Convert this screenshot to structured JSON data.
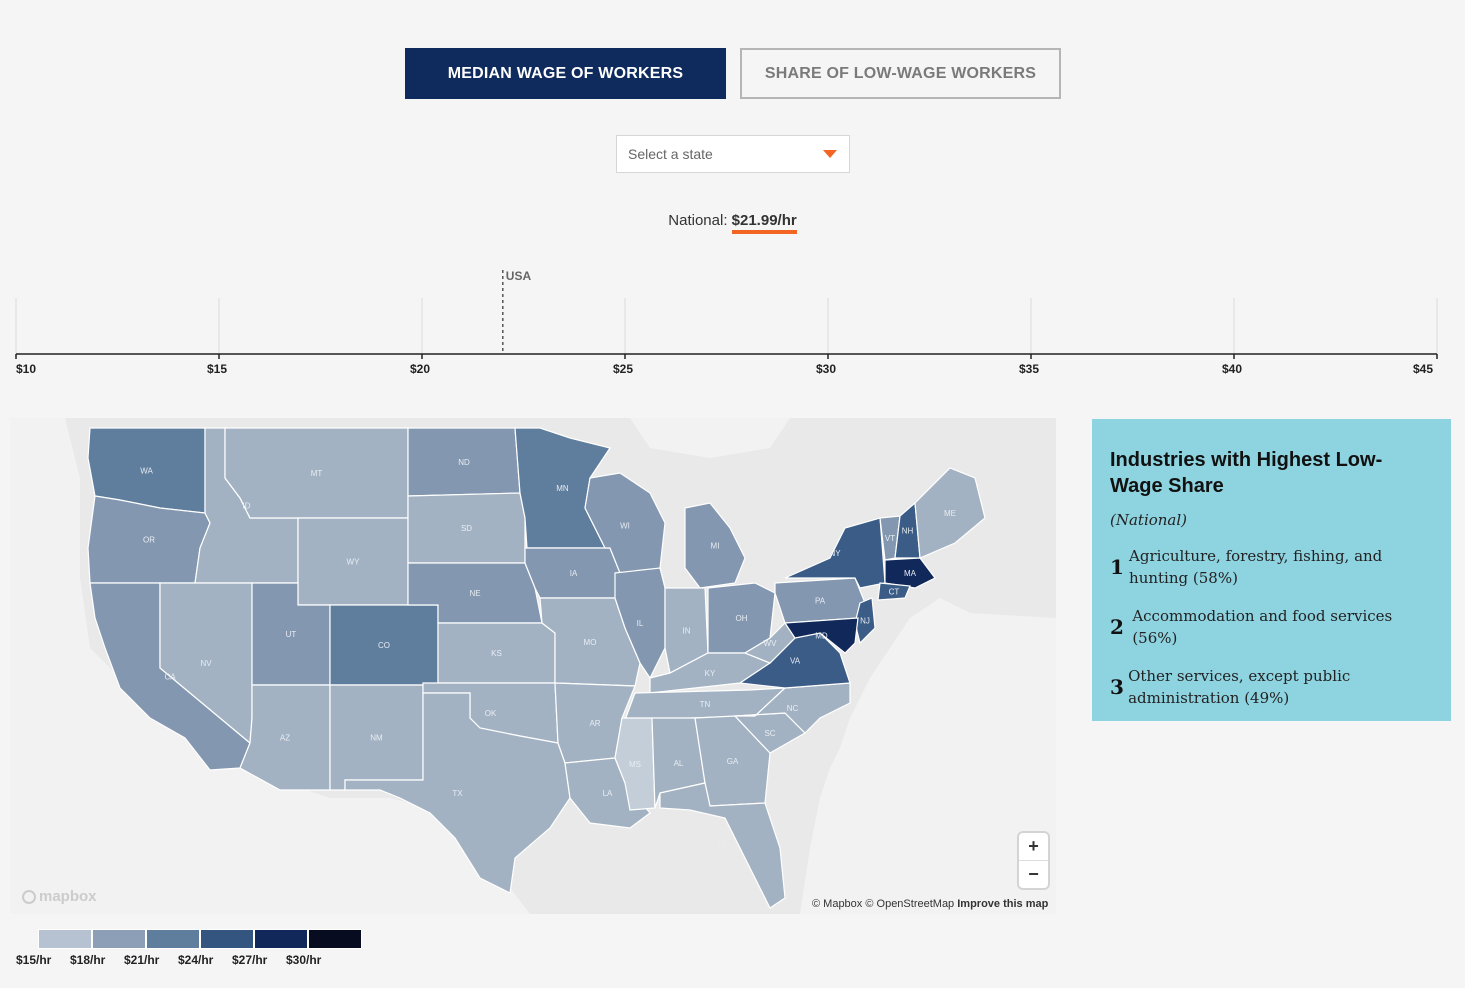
{
  "tabs": {
    "median_label": "MEDIAN WAGE OF WORKERS",
    "share_label": "SHARE OF LOW-WAGE WORKERS"
  },
  "state_select": {
    "placeholder": "Select a state"
  },
  "national": {
    "label": "National:",
    "value": "$21.99/hr",
    "marker_value": 21.99,
    "marker_label": "USA"
  },
  "axis": {
    "min": 10,
    "max": 45,
    "ticks": [
      {
        "v": 10,
        "label": "$10"
      },
      {
        "v": 15,
        "label": "$15"
      },
      {
        "v": 20,
        "label": "$20"
      },
      {
        "v": 25,
        "label": "$25"
      },
      {
        "v": 30,
        "label": "$30"
      },
      {
        "v": 35,
        "label": "$35"
      },
      {
        "v": 40,
        "label": "$40"
      },
      {
        "v": 45,
        "label": "$45"
      }
    ]
  },
  "map": {
    "colors": {
      "c15": "#a3b2c2",
      "c18": "#8397b0",
      "c21": "#5f7d9c",
      "c24": "#3a5c87",
      "light": "#c4ced9",
      "land": "#e6e6e6",
      "water": "#f2f2f2"
    },
    "states": [
      "WA",
      "OR",
      "CA",
      "ID",
      "NV",
      "MT",
      "WY",
      "UT",
      "AZ",
      "CO",
      "NM",
      "ND",
      "SD",
      "NE",
      "KS",
      "OK",
      "TX",
      "MN",
      "IA",
      "MO",
      "AR",
      "LA",
      "WI",
      "IL",
      "MI",
      "IN",
      "OH",
      "KY",
      "TN",
      "MS",
      "AL",
      "GA",
      "FL",
      "SC",
      "NC",
      "VA",
      "WV",
      "PA",
      "NY",
      "VT",
      "NH",
      "ME",
      "MA",
      "CT",
      "NJ",
      "MD"
    ],
    "attribution": {
      "mapbox": "© Mapbox",
      "osm": "© OpenStreetMap",
      "improve": "Improve this map"
    },
    "logo": "mapbox",
    "zoom_in": "+",
    "zoom_out": "−"
  },
  "legend": {
    "colors": [
      "#b6c2d1",
      "#8c9fb7",
      "#5f7d9c",
      "#34557f",
      "#10285a",
      "#080c20"
    ],
    "labels": [
      "$15/hr",
      "$18/hr",
      "$21/hr",
      "$24/hr",
      "$27/hr",
      "$30/hr"
    ]
  },
  "panel": {
    "title": "Industries with Highest Low-Wage Share",
    "subtitle": "(National)",
    "items": [
      {
        "rank": "1",
        "text": "Agriculture, forestry, fishing, and hunting (58%)"
      },
      {
        "rank": "2",
        "text": "Accommodation and food services (56%)"
      },
      {
        "rank": "3",
        "text": "Other services, except public administration (49%)"
      }
    ]
  }
}
